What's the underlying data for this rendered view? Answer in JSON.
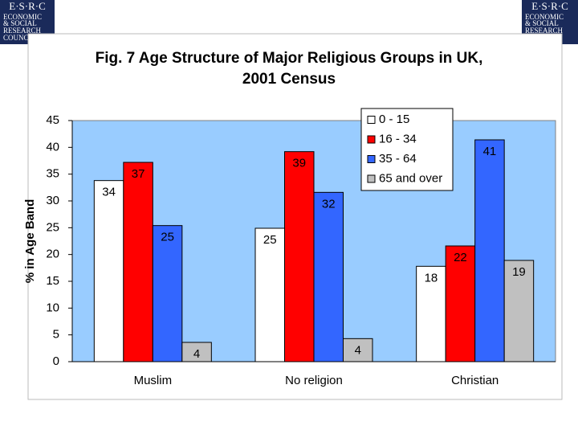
{
  "logo": {
    "lines": [
      "E·S·R·C",
      "ECONOMIC",
      "& SOCIAL",
      "RESEARCH",
      "COUNCIL"
    ]
  },
  "chart_data": {
    "type": "bar",
    "title": [
      "Fig. 7 Age Structure of Major Religious Groups in UK,",
      "2001 Census"
    ],
    "y_label": "% in Age Band",
    "categories": [
      "Muslim",
      "No religion",
      "Christian"
    ],
    "series": [
      {
        "name": "0 - 15",
        "color": "#ffffff",
        "values": [
          33.8,
          24.9,
          17.8
        ],
        "value_labels": [
          "34",
          "25",
          "18"
        ]
      },
      {
        "name": "16 - 34",
        "color": "#ff0000",
        "values": [
          37.2,
          39.2,
          21.6
        ],
        "value_labels": [
          "37",
          "39",
          "22"
        ]
      },
      {
        "name": "35 - 64",
        "color": "#3366ff",
        "values": [
          25.4,
          31.6,
          41.4
        ],
        "value_labels": [
          "25",
          "32",
          "41"
        ]
      },
      {
        "name": "65 and over",
        "color": "#c0c0c0",
        "values": [
          3.6,
          4.3,
          18.9
        ],
        "value_labels": [
          "4",
          "4",
          "19"
        ]
      }
    ],
    "ylim": [
      0,
      45
    ],
    "yticks": [
      0,
      5,
      10,
      15,
      20,
      25,
      30,
      35,
      40,
      45
    ],
    "grid": false,
    "legend": "top-right",
    "plot_background": "#99ccff"
  }
}
